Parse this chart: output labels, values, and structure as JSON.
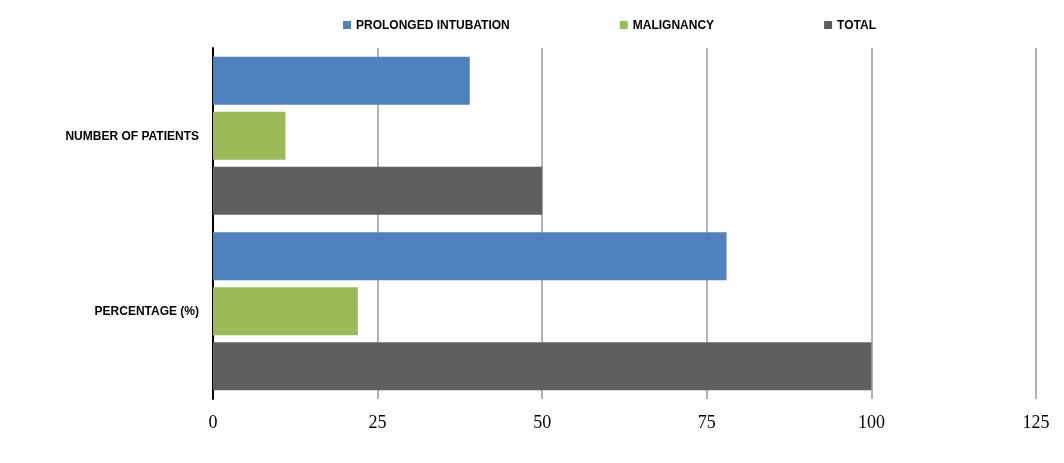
{
  "chart_data": {
    "type": "bar",
    "orientation": "horizontal",
    "categories": [
      "NUMBER OF PATIENTS",
      "PERCENTAGE (%)"
    ],
    "series": [
      {
        "name": "PROLONGED INTUBATION",
        "color": "#4f81bd",
        "values": [
          39,
          78
        ]
      },
      {
        "name": "MALIGNANCY",
        "color": "#9bbb59",
        "values": [
          11,
          22
        ]
      },
      {
        "name": "TOTAL",
        "color": "#5f5f5f",
        "values": [
          50,
          100
        ]
      }
    ],
    "xlim": [
      0,
      125
    ],
    "xticks": [
      0,
      25,
      50,
      75,
      100,
      125
    ],
    "grid": "x",
    "legend": "top"
  }
}
